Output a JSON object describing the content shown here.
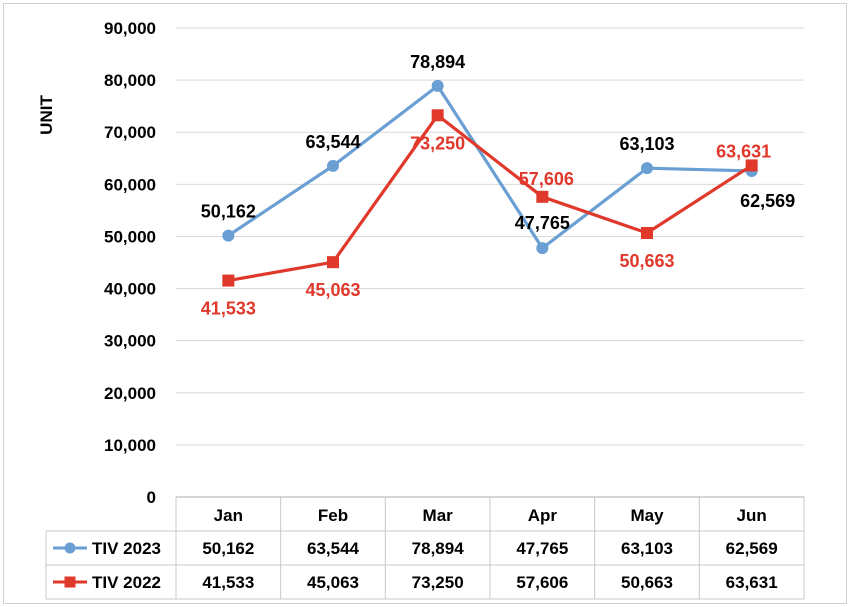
{
  "chart_data": {
    "type": "line",
    "title": "",
    "xlabel": "",
    "ylabel": "UNIT",
    "ylim": [
      0,
      90000
    ],
    "yticks": [
      "0",
      "10,000",
      "20,000",
      "30,000",
      "40,000",
      "50,000",
      "60,000",
      "70,000",
      "80,000",
      "90,000"
    ],
    "categories": [
      "Jan",
      "Feb",
      "Mar",
      "Apr",
      "May",
      "Jun"
    ],
    "grid": true,
    "legend": "data table",
    "series": [
      {
        "name": "TIV 2023",
        "color": "#6a9fd4",
        "marker": "circle",
        "values": [
          50162,
          63544,
          78894,
          47765,
          63103,
          62569
        ],
        "labels": [
          "50,162",
          "63,544",
          "78,894",
          "47,765",
          "63,103",
          "62,569"
        ],
        "label_color": "#000000"
      },
      {
        "name": "TIV 2022",
        "color": "#e0392b",
        "marker": "square",
        "values": [
          41533,
          45063,
          73250,
          57606,
          50663,
          63631
        ],
        "labels": [
          "41,533",
          "45,063",
          "73,250",
          "57,606",
          "50,663",
          "63,631"
        ],
        "label_color": "#e0392b"
      }
    ]
  }
}
